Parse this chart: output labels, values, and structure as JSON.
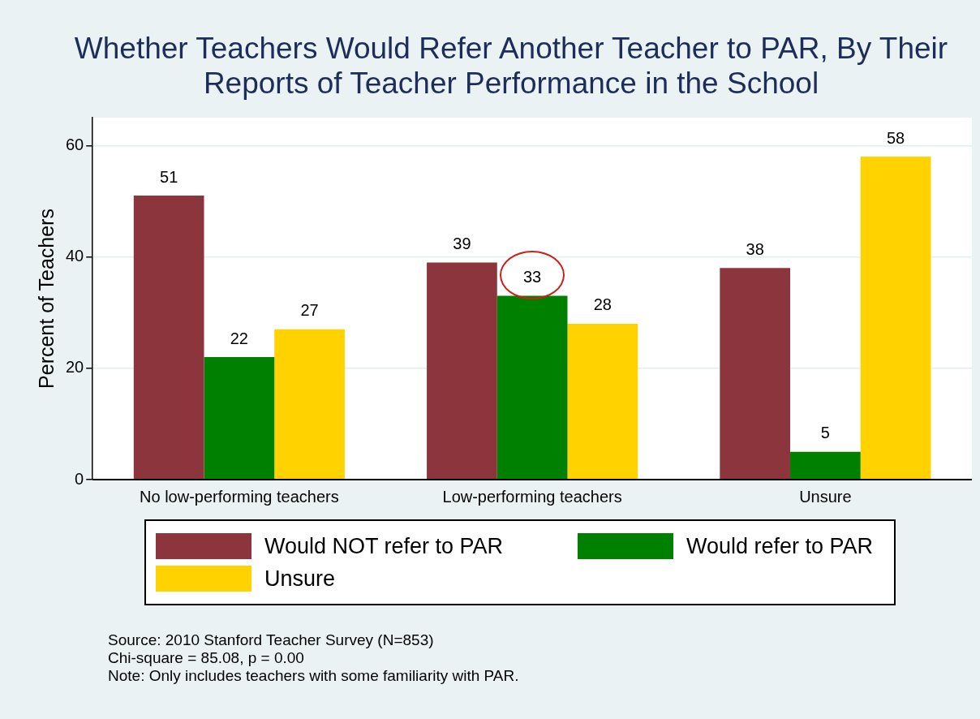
{
  "chart_data": {
    "type": "bar",
    "title": "Whether Teachers Would Refer Another Teacher to PAR, By Their Reports of Teacher Performance in the School",
    "ylabel": "Percent of Teachers",
    "categories": [
      "No low-performing teachers",
      "Low-performing teachers",
      "Unsure"
    ],
    "series": [
      {
        "name": "Would NOT refer to PAR",
        "color": "#8c353d",
        "values": [
          51,
          39,
          38
        ]
      },
      {
        "name": "Would refer to PAR",
        "color": "#008000",
        "values": [
          22,
          33,
          5
        ]
      },
      {
        "name": "Unsure",
        "color": "#ffd200",
        "values": [
          27,
          28,
          58
        ]
      }
    ],
    "ylim": [
      0,
      65
    ],
    "yticks": [
      0,
      20,
      40,
      60
    ],
    "grid": "y",
    "data_labels": true,
    "legend": "bottom",
    "annotations": [
      "Source: 2010 Stanford Teacher Survey (N=853)",
      "Chi-square = 85.08, p =  0.00",
      "Note: Only includes teachers with some familiarity with PAR."
    ]
  }
}
